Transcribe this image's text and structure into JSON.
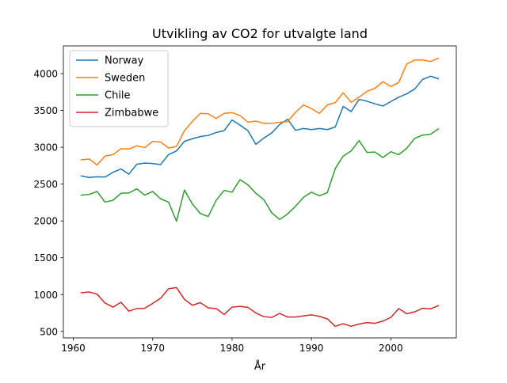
{
  "chart_data": {
    "type": "line",
    "title": "Utvikling av CO2 for utvalgte land",
    "xlabel": "År",
    "ylabel": "",
    "xlim": [
      1958.75,
      2008.25
    ],
    "ylim": [
      412,
      4376
    ],
    "xticks": [
      1960,
      1970,
      1980,
      1990,
      2000
    ],
    "yticks": [
      500,
      1000,
      1500,
      2000,
      2500,
      3000,
      3500,
      4000
    ],
    "grid": false,
    "legend_position": "top-left",
    "x": [
      1961,
      1962,
      1963,
      1964,
      1965,
      1966,
      1967,
      1968,
      1969,
      1970,
      1971,
      1972,
      1973,
      1974,
      1975,
      1976,
      1977,
      1978,
      1979,
      1980,
      1981,
      1982,
      1983,
      1984,
      1985,
      1986,
      1987,
      1988,
      1989,
      1990,
      1991,
      1992,
      1993,
      1994,
      1995,
      1996,
      1997,
      1998,
      1999,
      2000,
      2001,
      2002,
      2003,
      2004,
      2005,
      2006
    ],
    "series": [
      {
        "name": "Norway",
        "color": "#1f77b4",
        "values": [
          2610,
          2590,
          2600,
          2595,
          2660,
          2705,
          2635,
          2770,
          2785,
          2780,
          2765,
          2900,
          2950,
          3080,
          3115,
          3145,
          3160,
          3200,
          3225,
          3370,
          3300,
          3225,
          3040,
          3125,
          3195,
          3310,
          3380,
          3230,
          3255,
          3240,
          3255,
          3240,
          3275,
          3555,
          3485,
          3650,
          3625,
          3590,
          3560,
          3620,
          3680,
          3725,
          3790,
          3920,
          3965,
          3930
        ]
      },
      {
        "name": "Sweden",
        "color": "#ff7f0e",
        "values": [
          2830,
          2840,
          2760,
          2880,
          2900,
          2980,
          2975,
          3020,
          2995,
          3080,
          3070,
          2990,
          3010,
          3225,
          3350,
          3460,
          3455,
          3390,
          3460,
          3470,
          3430,
          3340,
          3355,
          3325,
          3325,
          3340,
          3350,
          3475,
          3575,
          3525,
          3460,
          3575,
          3605,
          3740,
          3610,
          3680,
          3760,
          3800,
          3890,
          3825,
          3880,
          4130,
          4185,
          4185,
          4165,
          4210
        ]
      },
      {
        "name": "Chile",
        "color": "#2ca02c",
        "values": [
          2350,
          2360,
          2400,
          2255,
          2280,
          2375,
          2380,
          2435,
          2350,
          2400,
          2300,
          2255,
          1995,
          2420,
          2230,
          2100,
          2060,
          2280,
          2415,
          2390,
          2560,
          2490,
          2375,
          2290,
          2110,
          2020,
          2095,
          2200,
          2320,
          2390,
          2340,
          2385,
          2710,
          2880,
          2950,
          3090,
          2930,
          2935,
          2860,
          2940,
          2900,
          2985,
          3120,
          3165,
          3175,
          3250
        ]
      },
      {
        "name": "Zimbabwe",
        "color": "#d62728",
        "values": [
          1025,
          1035,
          1005,
          885,
          830,
          895,
          775,
          810,
          815,
          880,
          950,
          1080,
          1095,
          935,
          855,
          890,
          820,
          810,
          730,
          830,
          840,
          825,
          750,
          700,
          690,
          745,
          695,
          695,
          710,
          725,
          705,
          670,
          570,
          605,
          570,
          600,
          620,
          610,
          640,
          690,
          810,
          740,
          765,
          815,
          805,
          850
        ]
      }
    ]
  }
}
